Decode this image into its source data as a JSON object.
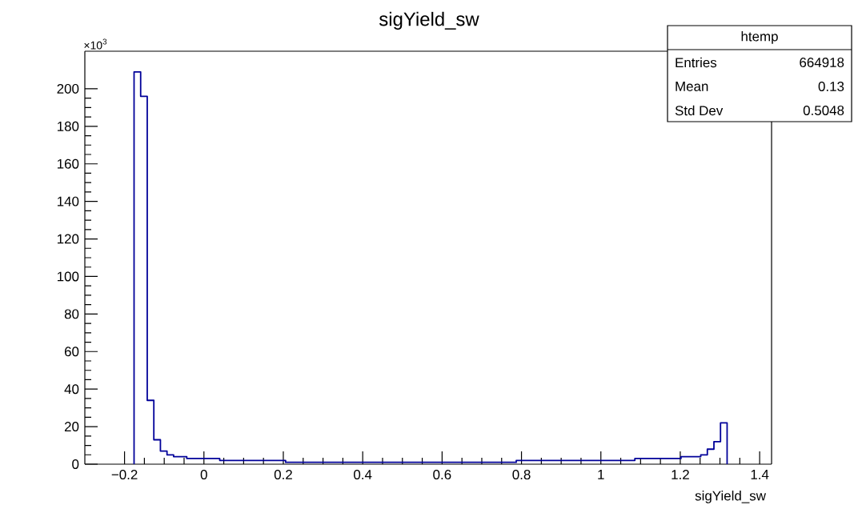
{
  "chart_data": {
    "type": "histogram",
    "title": "sigYield_sw",
    "xlabel": "sigYield_sw",
    "bins": [
      -0.176,
      -0.1594,
      -0.1428,
      -0.1262,
      -0.1096,
      -0.093,
      -0.0764,
      -0.0598,
      -0.0432,
      -0.0266,
      -0.01,
      0.0066,
      0.0232,
      0.0398,
      0.0564,
      0.073,
      0.0896,
      0.1062,
      0.1228,
      0.1394,
      0.156,
      0.1726,
      0.1892,
      0.2058,
      0.2224,
      0.239,
      0.2556,
      0.2722,
      0.2888,
      0.3054,
      0.322,
      0.3386,
      0.3552,
      0.3718,
      0.3884,
      0.405,
      0.4216,
      0.4382,
      0.4548,
      0.4714,
      0.488,
      0.5046,
      0.5212,
      0.5378,
      0.5544,
      0.571,
      0.5876,
      0.6042,
      0.6208,
      0.6374,
      0.654,
      0.6706,
      0.6872,
      0.7038,
      0.7204,
      0.737,
      0.7536,
      0.7702,
      0.7868,
      0.8034,
      0.82,
      0.8366,
      0.8532,
      0.8698,
      0.8864,
      0.903,
      0.9196,
      0.9362,
      0.9528,
      0.9694,
      0.986,
      1.0026,
      1.0192,
      1.0358,
      1.0524,
      1.069,
      1.0856,
      1.1022,
      1.1188,
      1.1354,
      1.152,
      1.1686,
      1.1852,
      1.2018,
      1.2184,
      1.235,
      1.2516,
      1.2682,
      1.2848,
      1.3014,
      1.318
    ],
    "values": [
      209,
      196,
      34,
      13,
      7,
      5,
      4,
      4,
      3,
      3,
      3,
      3,
      3,
      2,
      2,
      2,
      2,
      2,
      2,
      2,
      2,
      2,
      2,
      1,
      1,
      1,
      1,
      1,
      1,
      1,
      1,
      1,
      1,
      1,
      1,
      1,
      1,
      1,
      1,
      1,
      1,
      1,
      1,
      1,
      1,
      1,
      1,
      1,
      1,
      1,
      1,
      1,
      1,
      1,
      1,
      1,
      1,
      1,
      2,
      2,
      2,
      2,
      2,
      2,
      2,
      2,
      2,
      2,
      2,
      2,
      2,
      2,
      2,
      2,
      2,
      2,
      3,
      3,
      3,
      3,
      3,
      3,
      3,
      4,
      4,
      4,
      5,
      8,
      12,
      22
    ],
    "color": "#000099",
    "xlim": [
      -0.3,
      1.43
    ],
    "xticks": [
      {
        "value": -0.2,
        "label": "−0.2"
      },
      0,
      0.2,
      0.4,
      0.6,
      0.8,
      1,
      1.2,
      1.4
    ],
    "ylim": [
      0,
      220
    ],
    "yticks": [
      0,
      20,
      40,
      60,
      80,
      100,
      120,
      140,
      160,
      180,
      200
    ],
    "annotations": [
      "×10$^{3}$",
      "htemp",
      "Entries",
      "664918",
      "Mean",
      "0.13",
      "Std Dev",
      "0.5048"
    ]
  }
}
